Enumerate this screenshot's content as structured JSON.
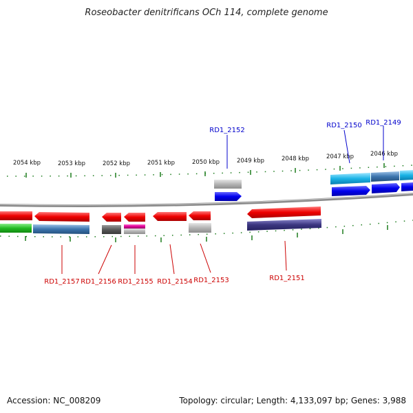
{
  "title": "Roseobacter denitrificans OCh 114, complete genome",
  "footer": {
    "accession": "Accession: NC_008209",
    "summary": "Topology: circular; Length: 4,133,097 bp; Genes: 3,988"
  },
  "scale_labels": [
    "2054 kbp",
    "2053 kbp",
    "2052 kbp",
    "2051 kbp",
    "2050 kbp",
    "2049 kbp",
    "2048 kbp",
    "2047 kbp",
    "2046 kbp"
  ],
  "gene_labels_bottom": [
    "RD1_2157",
    "RD1_2156",
    "RD1_2155",
    "RD1_2154",
    "RD1_2153",
    "RD1_2151"
  ],
  "gene_labels_top": [
    "RD1_2152",
    "RD1_2150",
    "RD1_2149"
  ],
  "colors": {
    "gene_red": "#ee0000",
    "gene_blue": "#0000ee",
    "cyan": "#1ab3e6",
    "steel": "#3b74ad",
    "purple": "#3b3680",
    "green": "#22bb22",
    "gray": "#b4b4b4",
    "dark_gray": "#5a5a5a",
    "magenta": "#dd0099",
    "scale_green": "#1a7a1a",
    "backbone": "#8a8a8a"
  }
}
